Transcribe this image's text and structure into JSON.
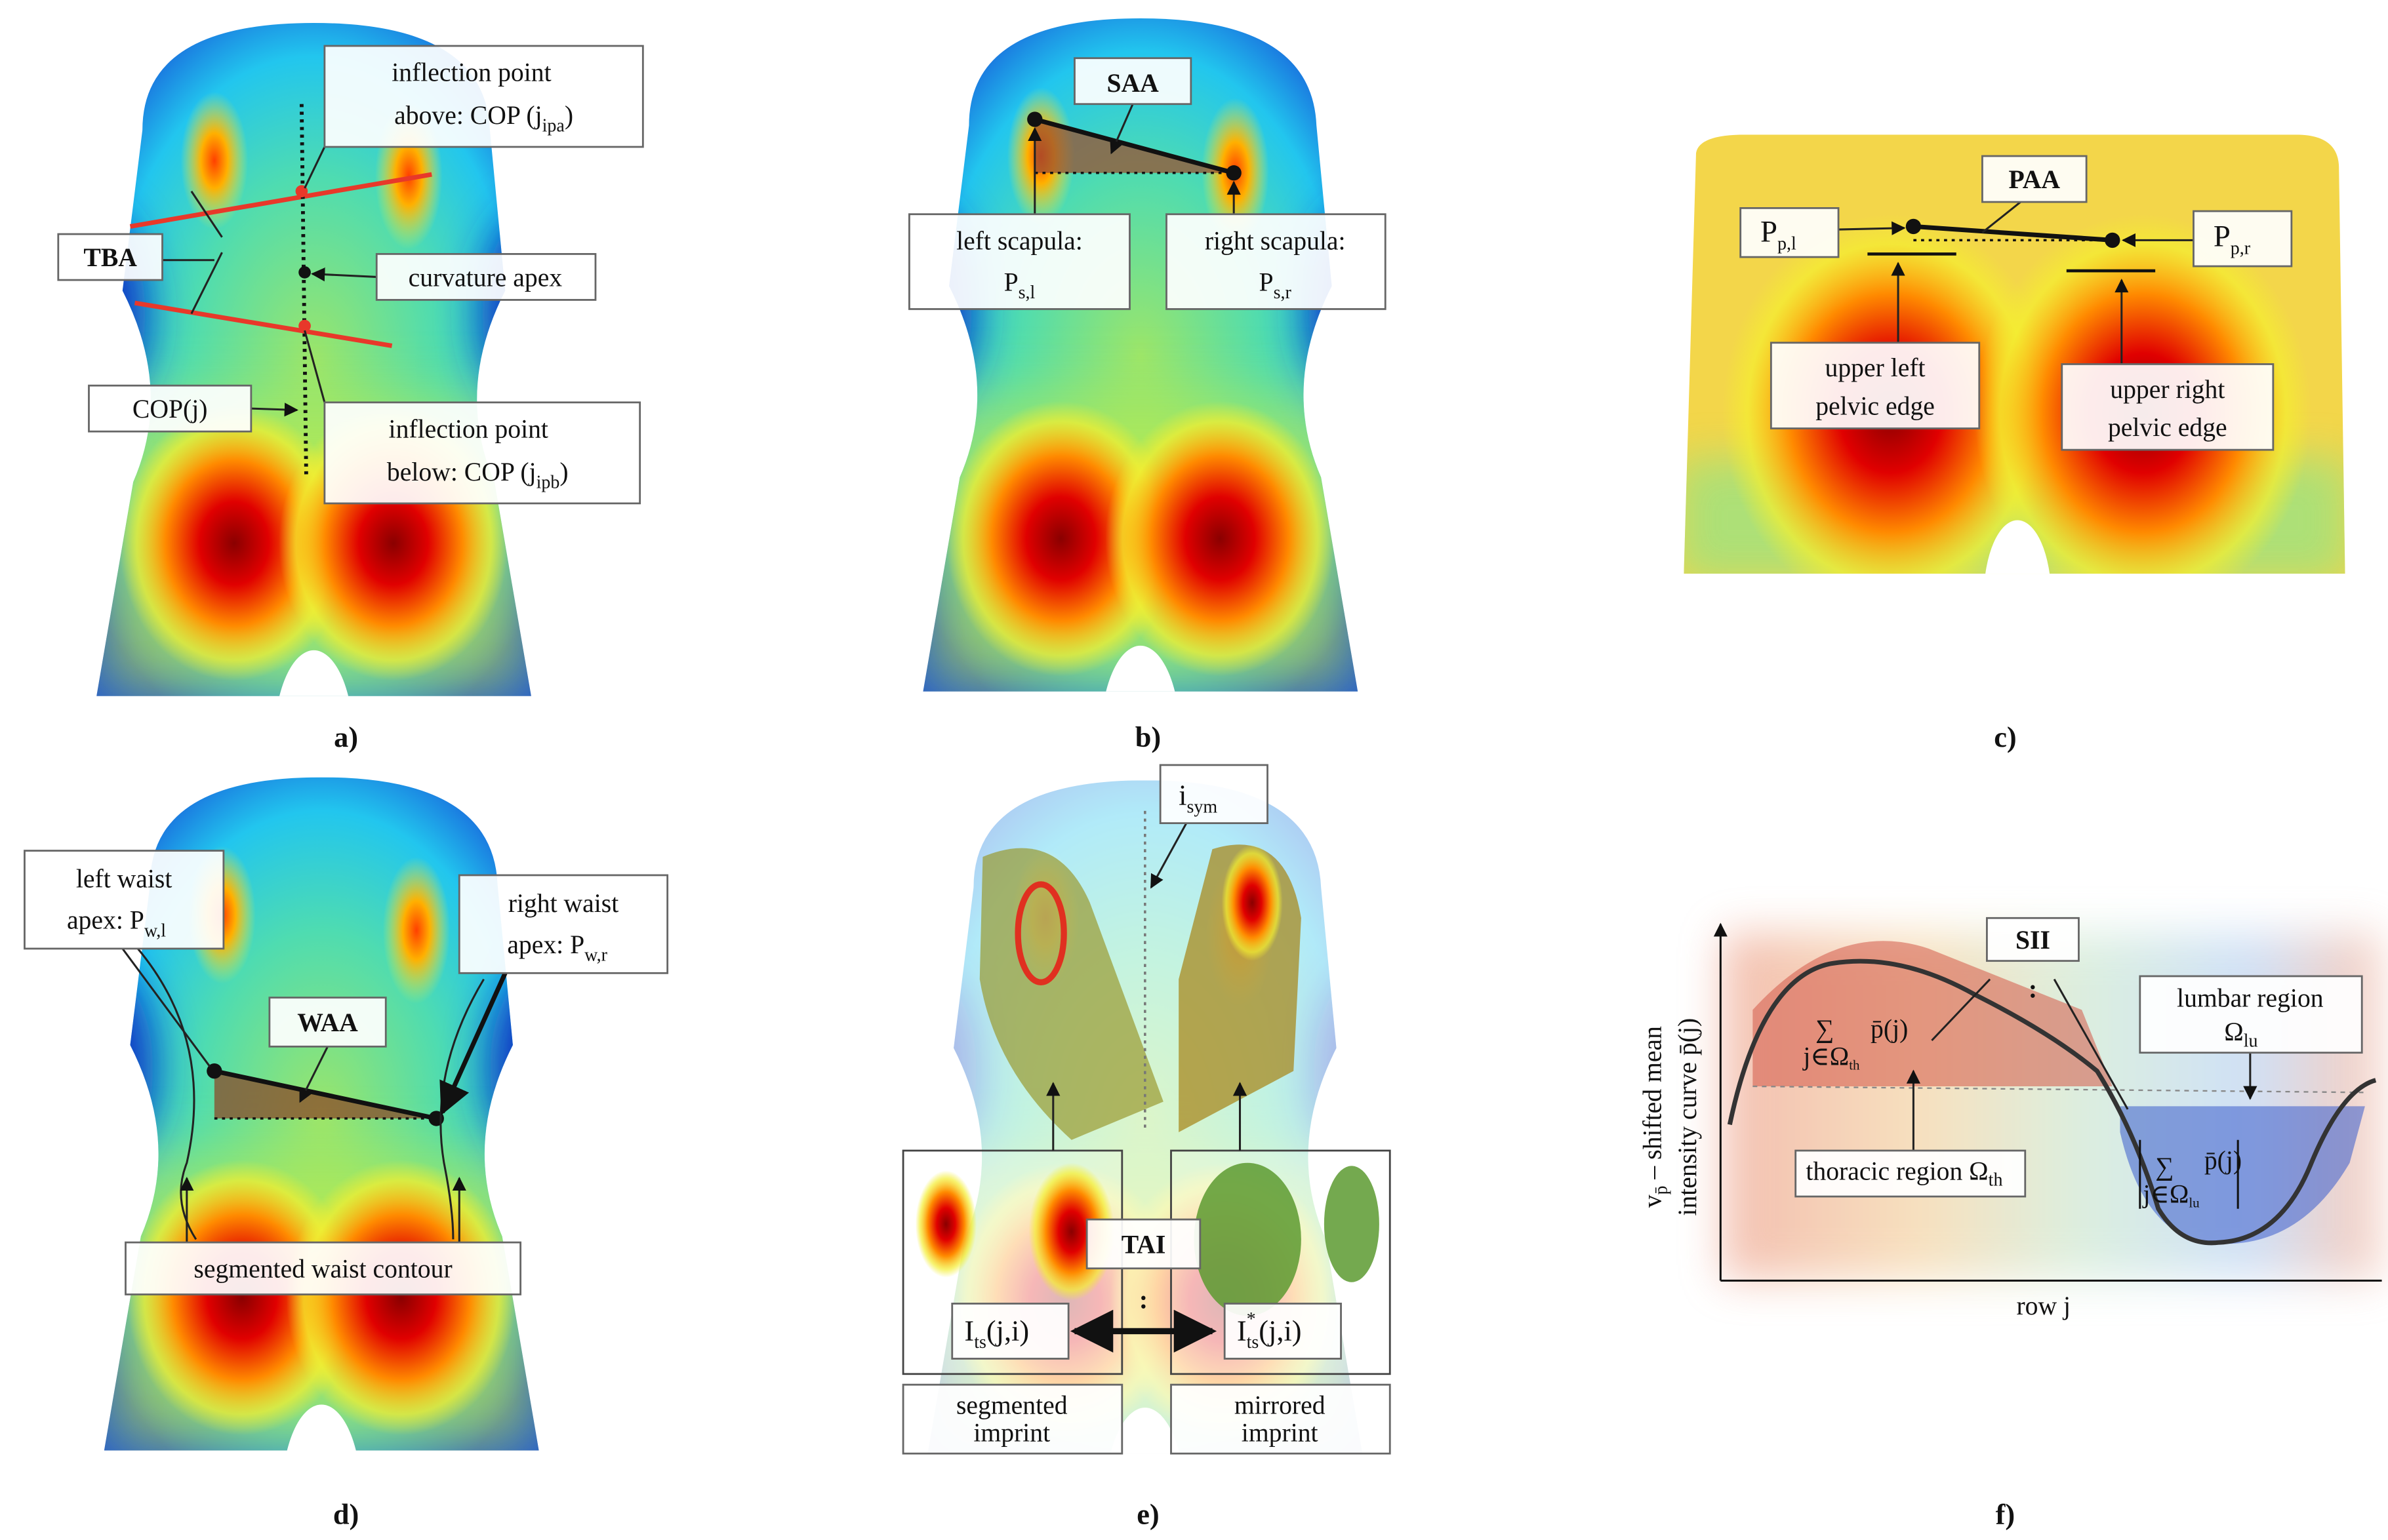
{
  "panels": {
    "a": {
      "label": "a)",
      "inflection_above_1": "inflection point",
      "inflection_above_2": "above: COP (j",
      "inflection_above_sub": "ipa",
      "inflection_above_3": ")",
      "tba": "TBA",
      "curvature_apex": "curvature apex",
      "cop_j": "COP(j)",
      "inflection_below_1": "inflection point",
      "inflection_below_2": "below: COP (j",
      "inflection_below_sub": "ipb",
      "inflection_below_3": ")"
    },
    "b": {
      "label": "b)",
      "saa": "SAA",
      "left_1": "left scapula:",
      "left_2": "P",
      "left_sub": "s,l",
      "right_1": "right scapula:",
      "right_2": "P",
      "right_sub": "s,r"
    },
    "c": {
      "label": "c)",
      "paa": "PAA",
      "ppl": "P",
      "ppl_sub": "p,l",
      "ppr": "P",
      "ppr_sub": "p,r",
      "upper_left_1": "upper left",
      "upper_left_2": "pelvic edge",
      "upper_right_1": "upper right",
      "upper_right_2": "pelvic edge"
    },
    "d": {
      "label": "d)",
      "left_1": "left waist",
      "left_2": "apex: P",
      "left_sub": "w,l",
      "right_1": "right waist",
      "right_2": "apex: P",
      "right_sub": "w,r",
      "waa": "WAA",
      "contour": "segmented waist contour"
    },
    "e": {
      "label": "e)",
      "isym": "i",
      "isym_sub": "sym",
      "tai": "TAI",
      "colon": ":",
      "its": "I",
      "its_sub": "ts",
      "its_rest": "(j,i)",
      "its_m": "I",
      "its_m_sup": "*",
      "its_m_sub": "ts",
      "its_m_rest": "(j,i)",
      "seg_1": "segmented",
      "seg_2": "imprint",
      "mir_1": "mirrored",
      "mir_2": "imprint"
    },
    "f": {
      "label": "f)",
      "y_label_1": "v",
      "y_label_sub": "p̄",
      "y_label_2": " – shifted mean",
      "y_label_3": "intensity curve p̄(j)",
      "x_label": "row j",
      "sii": "SII",
      "colon": ":",
      "lumbar_1": "lumbar region",
      "lumbar_2": "Ω",
      "lumbar_sub": "lu",
      "thoracic": "thoracic region Ω",
      "thoracic_sub": "th",
      "sum": "∑",
      "sum_th_idx": "j∈Ω",
      "sum_th_sub": "th",
      "sum_lu_idx": "j∈Ω",
      "sum_lu_sub": "lu",
      "pbar": "p̄(j)"
    }
  }
}
